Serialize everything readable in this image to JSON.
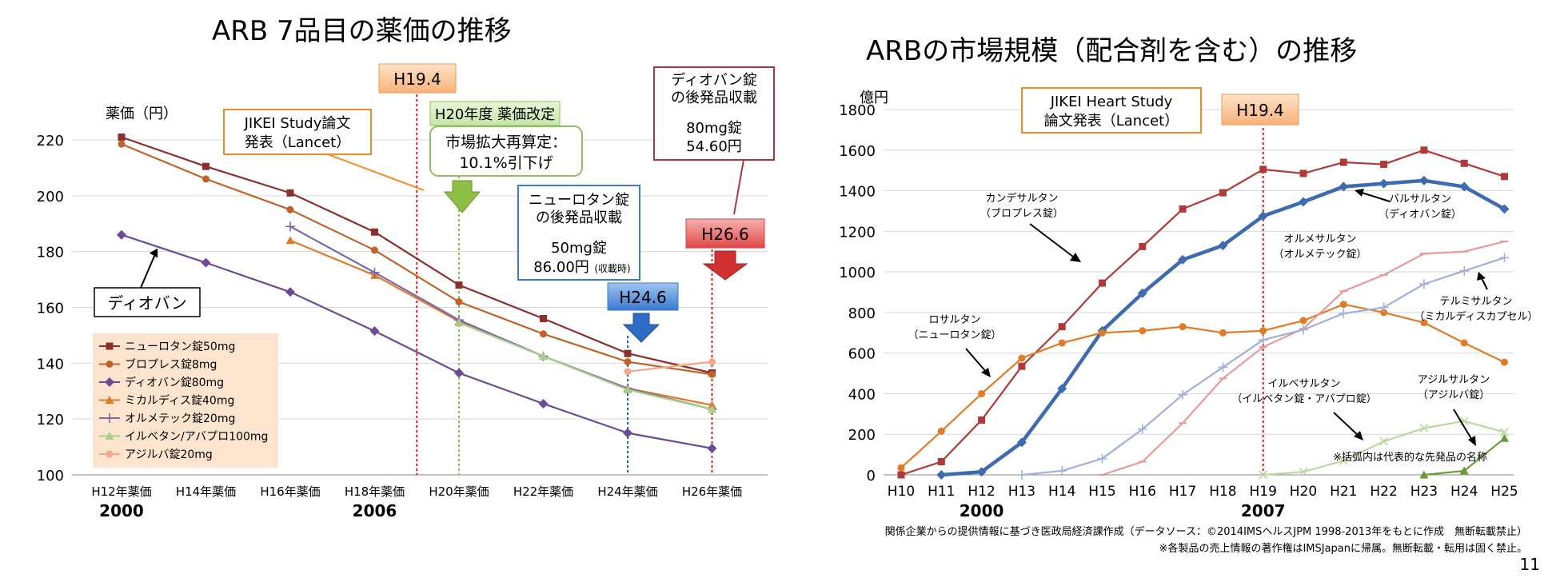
{
  "page": {
    "page_number": "11",
    "footnote_1": "関係企業からの提供情報に基づき医政局経済課作成（データソース：©2014IMSヘルスJPM 1998-2013年をもとに作成　無断転載禁止）",
    "footnote_2": "※各製品の売上情報の著作権はIMSJapanに帰属。無断転載・転用は固く禁止。",
    "note": "※括弧内は代表的な先発品の名称"
  },
  "chart_data": [
    {
      "type": "line",
      "title": "ARB  7品目の薬価の推移",
      "ylabel": "薬価（円）",
      "ylim": [
        100,
        220
      ],
      "yticks": [
        100,
        120,
        140,
        160,
        180,
        200,
        220
      ],
      "categories": [
        "H12年薬価",
        "H14年薬価",
        "H16年薬価",
        "H18年薬価",
        "H20年薬価",
        "H22年薬価",
        "H24年薬価",
        "H26年薬価"
      ],
      "year_labels": [
        {
          "cat": 0,
          "label": "2000"
        },
        {
          "cat": 3,
          "label": "2006"
        }
      ],
      "series": [
        {
          "name": "ニューロタン錠50mg",
          "color": "#8B2F2D",
          "marker": "square",
          "values": [
            221,
            210.5,
            201,
            187,
            168,
            156,
            143.5,
            136.5
          ]
        },
        {
          "name": "ブロプレス錠8mg",
          "color": "#C0622A",
          "marker": "circle",
          "values": [
            218.5,
            206,
            195,
            180.5,
            162,
            150.5,
            140.5,
            136
          ]
        },
        {
          "name": "ディオバン錠80mg",
          "color": "#6B4C93",
          "marker": "diamond",
          "values": [
            186,
            176,
            165.5,
            151.5,
            136.5,
            125.5,
            115,
            109.5
          ]
        },
        {
          "name": "ミカルディス錠40mg",
          "color": "#E07B28",
          "marker": "triangle",
          "values": [
            null,
            null,
            184,
            171.5,
            155,
            142.5,
            131,
            125
          ]
        },
        {
          "name": "オルメテック錠20mg",
          "color": "#7A6AAA",
          "marker": "plus",
          "values": [
            null,
            null,
            189,
            172.5,
            155.5,
            142.5,
            131,
            123.5
          ]
        },
        {
          "name": "イルベタン/アバプロ100mg",
          "color": "#A8CF8A",
          "marker": "triangle",
          "values": [
            null,
            null,
            null,
            null,
            154.5,
            142.5,
            130.5,
            123.5
          ]
        },
        {
          "name": "アジルバ錠20mg",
          "color": "#F2A88A",
          "marker": "circle",
          "values": [
            null,
            null,
            null,
            null,
            null,
            null,
            137,
            140.5
          ]
        }
      ],
      "events": [
        {
          "label": "H19.4",
          "position": 3.5
        },
        {
          "label": "H20年度 薬価改定",
          "position": 4
        },
        {
          "label": "H24.6",
          "position": 6
        },
        {
          "label": "H26.6",
          "position": 7
        }
      ],
      "annotations": {
        "jikei": [
          "JIKEI Study論文",
          "発表（Lancet）"
        ],
        "revision_box": [
          "市場拡大再算定：",
          "10.1%引下げ"
        ],
        "neurotan_generic": [
          "ニューロタン錠",
          "の後発品収載",
          "50mg錠",
          "86.00円",
          "(収載時)"
        ],
        "diovan_generic": [
          "ディオバン錠",
          "の後発品収載",
          "80mg錠",
          "54.60円"
        ],
        "diovan_label": "ディオバン"
      }
    },
    {
      "type": "line",
      "title": "ARBの市場規模（配合剤を含む）の推移",
      "ylabel": "億円",
      "ylim": [
        0,
        1800
      ],
      "yticks": [
        0,
        200,
        400,
        600,
        800,
        1000,
        1200,
        1400,
        1600,
        1800
      ],
      "categories": [
        "H10",
        "H11",
        "H12",
        "H13",
        "H14",
        "H15",
        "H16",
        "H17",
        "H18",
        "H19",
        "H20",
        "H21",
        "H22",
        "H23",
        "H24",
        "H25"
      ],
      "year_labels": [
        {
          "cat": 2,
          "label": "2000"
        },
        {
          "cat": 9,
          "label": "2007"
        }
      ],
      "series": [
        {
          "name": "カンデサルタン（ブロプレス錠）",
          "color": "#B03A3A",
          "marker": "square",
          "values": [
            0,
            65,
            270,
            535,
            730,
            945,
            1125,
            1310,
            1390,
            1505,
            1485,
            1540,
            1530,
            1600,
            1535,
            1470
          ]
        },
        {
          "name": "バルサルタン（ディオバン錠）",
          "color": "#3D6BB0",
          "marker": "diamond",
          "values": [
            null,
            0,
            15,
            160,
            425,
            710,
            895,
            1060,
            1130,
            1275,
            1345,
            1420,
            1435,
            1450,
            1420,
            1310
          ]
        },
        {
          "name": "ロサルタン（ニューロタン錠）",
          "color": "#E07B28",
          "marker": "circle",
          "values": [
            35,
            215,
            400,
            575,
            650,
            700,
            710,
            730,
            700,
            710,
            760,
            840,
            800,
            750,
            650,
            555
          ]
        },
        {
          "name": "オルメサルタン（オルメテック錠）",
          "color": "#E89A9A",
          "marker": "dash",
          "values": [
            null,
            null,
            null,
            null,
            null,
            0,
            65,
            255,
            475,
            630,
            720,
            905,
            985,
            1090,
            1100,
            1150
          ]
        },
        {
          "name": "テルミサルタン（ミカルディスカプセル）",
          "color": "#9FB0DA",
          "marker": "plus",
          "values": [
            null,
            null,
            null,
            0,
            20,
            80,
            225,
            395,
            530,
            665,
            715,
            795,
            825,
            940,
            1005,
            1070
          ]
        },
        {
          "name": "イルベサルタン（イルベタン錠・アバプロ錠）",
          "color": "#B8D8A0",
          "marker": "x",
          "values": [
            null,
            null,
            null,
            null,
            null,
            null,
            null,
            null,
            null,
            0,
            15,
            70,
            165,
            230,
            265,
            210
          ]
        },
        {
          "name": "アジルサルタン（アジルバ錠）",
          "color": "#6A9A3A",
          "marker": "triangle",
          "values": [
            null,
            null,
            null,
            null,
            null,
            null,
            null,
            null,
            null,
            null,
            null,
            null,
            null,
            0,
            20,
            180
          ]
        }
      ],
      "events": [
        {
          "label": "H19.4",
          "position": 9
        }
      ],
      "annotations": {
        "jikei": [
          "JIKEI Heart Study",
          "論文発表（Lancet）"
        ],
        "candesartan": [
          "カンデサルタン",
          "（ブロプレス錠）"
        ],
        "valsartan": [
          "バルサルタン",
          "（ディオバン錠）"
        ],
        "olmesartan": [
          "オルメサルタン",
          "（オルメテック錠）"
        ],
        "telmisartan": [
          "テルミサルタン",
          "（ミカルディスカプセル）"
        ],
        "losartan": [
          "ロサルタン",
          "（ニューロタン錠）"
        ],
        "irbesartan": [
          "イルベサルタン",
          "（イルベタン錠・アバプロ錠）"
        ],
        "azilsartan": [
          "アジルサルタン",
          "（アジルバ錠）"
        ]
      }
    }
  ]
}
